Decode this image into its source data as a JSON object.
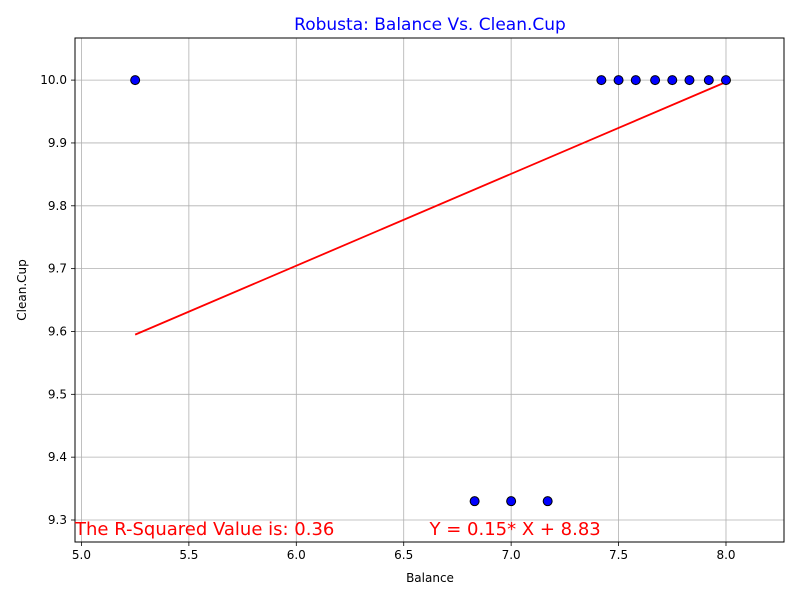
{
  "chart_data": {
    "type": "scatter",
    "title": "Robusta: Balance Vs. Clean.Cup",
    "xlabel": "Balance",
    "ylabel": "Clean.Cup",
    "xlim": [
      4.97,
      8.27
    ],
    "ylim": [
      9.265,
      10.067
    ],
    "x_ticks": [
      5.0,
      5.5,
      6.0,
      6.5,
      7.0,
      7.5,
      8.0
    ],
    "x_tick_labels": [
      "5.0",
      "5.5",
      "6.0",
      "6.5",
      "7.0",
      "7.5",
      "8.0"
    ],
    "y_ticks": [
      9.3,
      9.4,
      9.5,
      9.6,
      9.7,
      9.8,
      9.9,
      10.0
    ],
    "y_tick_labels": [
      "9.3",
      "9.4",
      "9.5",
      "9.6",
      "9.7",
      "9.8",
      "9.9",
      "10.0"
    ],
    "grid": true,
    "series": [
      {
        "points": [
          [
            5.25,
            10.0
          ],
          [
            7.42,
            10.0
          ],
          [
            7.5,
            10.0
          ],
          [
            7.58,
            10.0
          ],
          [
            7.67,
            10.0
          ],
          [
            7.75,
            10.0
          ],
          [
            7.83,
            10.0
          ],
          [
            7.92,
            10.0
          ],
          [
            8.0,
            10.0
          ],
          [
            6.83,
            9.33
          ],
          [
            7.0,
            9.33
          ],
          [
            7.17,
            9.33
          ]
        ],
        "color": "#0000ff",
        "edge_color": "#000000"
      }
    ],
    "regression": {
      "slope": 0.15,
      "intercept": 8.83,
      "x_range": [
        5.25,
        8.0
      ],
      "y_range": [
        9.595,
        9.997
      ],
      "color": "#ff0000"
    },
    "annotations": [
      {
        "text": "The R-Squared Value is: 0.36",
        "x": 4.97,
        "y": 9.3,
        "color": "#ff0000"
      },
      {
        "text": "Y = 0.15* X + 8.83",
        "x": 6.62,
        "y": 9.3,
        "color": "#ff0000"
      }
    ]
  }
}
